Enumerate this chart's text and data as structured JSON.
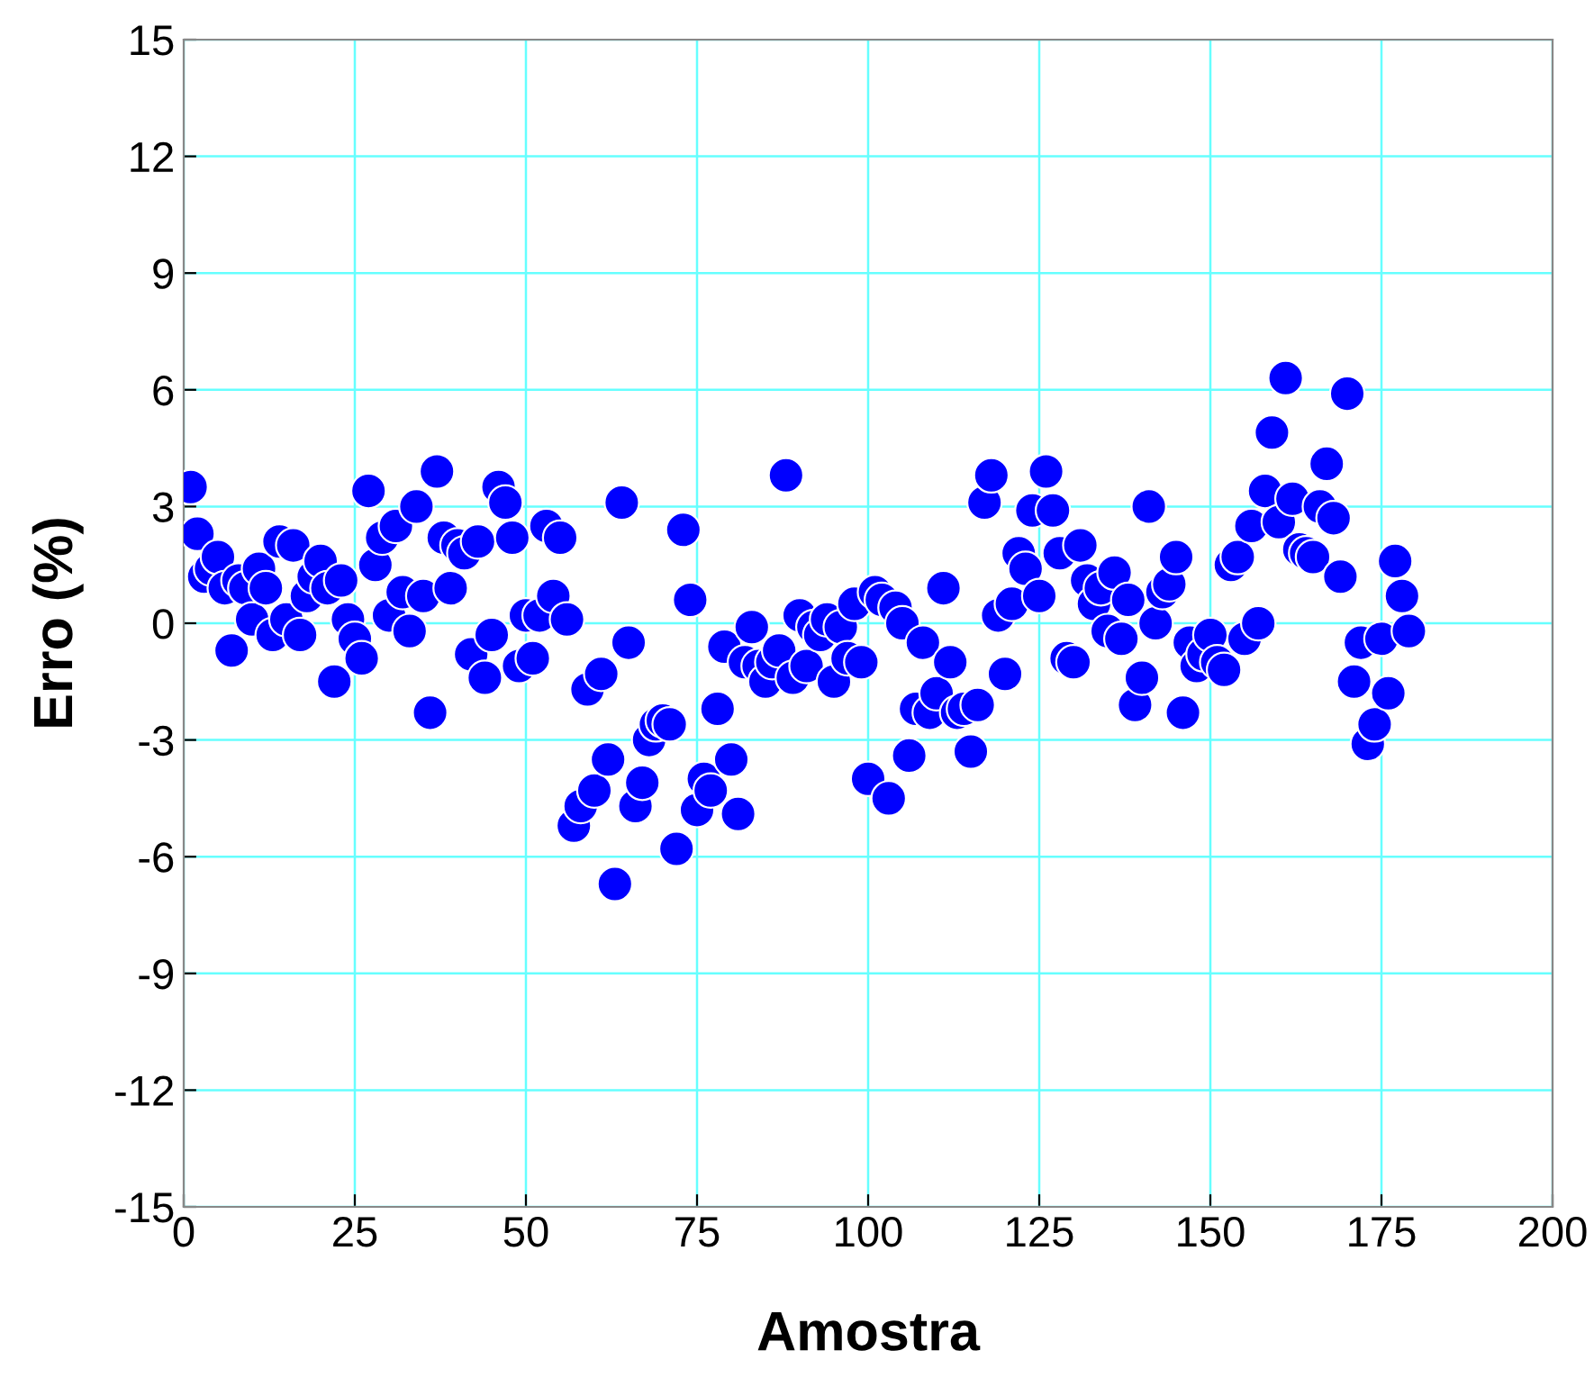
{
  "chart_data": {
    "type": "scatter",
    "xlabel": "Amostra",
    "ylabel": "Erro (%)",
    "x": [
      1,
      2,
      3,
      4,
      5,
      6,
      7,
      8,
      9,
      10,
      11,
      12,
      13,
      14,
      15,
      16,
      17,
      18,
      19,
      20,
      21,
      22,
      23,
      24,
      25,
      26,
      27,
      28,
      29,
      30,
      31,
      32,
      33,
      34,
      35,
      36,
      37,
      38,
      39,
      40,
      41,
      42,
      43,
      44,
      45,
      46,
      47,
      48,
      49,
      50,
      51,
      52,
      53,
      54,
      55,
      56,
      57,
      58,
      59,
      60,
      61,
      62,
      63,
      64,
      65,
      66,
      67,
      68,
      69,
      70,
      71,
      72,
      73,
      74,
      75,
      76,
      77,
      78,
      79,
      80,
      81,
      82,
      83,
      84,
      85,
      86,
      87,
      88,
      89,
      90,
      91,
      92,
      93,
      94,
      95,
      96,
      97,
      98,
      99,
      100,
      101,
      102,
      103,
      104,
      105,
      106,
      107,
      108,
      109,
      110,
      111,
      112,
      113,
      114,
      115,
      116,
      117,
      118,
      119,
      120,
      121,
      122,
      123,
      124,
      125,
      126,
      127,
      128,
      129,
      130,
      131,
      132,
      133,
      134,
      135,
      136,
      137,
      138,
      139,
      140,
      141,
      142,
      143,
      144,
      145,
      146,
      147,
      148,
      149,
      150,
      151,
      152,
      153,
      154,
      155,
      156,
      157,
      158,
      159,
      160,
      161,
      162,
      163,
      164,
      165,
      166,
      167,
      168,
      169,
      170,
      171,
      172,
      173,
      174,
      175,
      176,
      177,
      178,
      179
    ],
    "series": [
      {
        "color": "#0000ff",
        "values": [
          3.5,
          2.3,
          1.2,
          1.4,
          1.7,
          0.9,
          -0.7,
          1.1,
          0.9,
          0.1,
          1.4,
          0.9,
          -0.3,
          2.1,
          0.1,
          2.0,
          -0.3,
          0.7,
          1.2,
          1.6,
          0.9,
          -1.5,
          1.1,
          0.1,
          -0.4,
          -0.9,
          3.4,
          1.5,
          2.2,
          0.2,
          2.5,
          0.8,
          -0.2,
          3.0,
          0.7,
          -2.3,
          3.9,
          2.2,
          0.9,
          2.0,
          1.8,
          -0.8,
          2.1,
          -1.4,
          -0.3,
          3.5,
          3.1,
          2.2,
          -1.1,
          0.2,
          -0.9,
          0.2,
          2.5,
          0.7,
          2.2,
          0.1,
          -5.2,
          -4.7,
          -1.7,
          -4.3,
          -1.3,
          -3.5,
          -6.7,
          3.1,
          -0.5,
          -4.7,
          -4.1,
          -3.0,
          -2.6,
          -2.5,
          -2.6,
          -5.8,
          2.4,
          0.6,
          -4.8,
          -4.0,
          -4.3,
          -2.2,
          -0.6,
          -3.5,
          -4.9,
          -1.0,
          -0.1,
          -1.1,
          -1.5,
          -1.0,
          -0.7,
          3.8,
          -1.4,
          0.2,
          -1.1,
          -0.1,
          -0.3,
          0.1,
          -1.5,
          -0.1,
          -0.9,
          0.5,
          -1.0,
          -4.0,
          0.8,
          0.6,
          -4.5,
          0.4,
          0.0,
          -3.4,
          -2.2,
          -0.5,
          -2.3,
          -1.8,
          0.9,
          -1.0,
          -2.3,
          -2.2,
          -3.3,
          -2.1,
          3.1,
          3.8,
          0.2,
          -1.3,
          0.5,
          1.8,
          1.4,
          2.9,
          0.7,
          3.9,
          2.9,
          1.8,
          -0.9,
          -1.0,
          2.0,
          1.1,
          0.5,
          0.9,
          -0.2,
          1.3,
          -0.4,
          0.6,
          -2.1,
          -1.4,
          3.0,
          0.0,
          0.8,
          1.0,
          1.7,
          -2.3,
          -0.5,
          -1.1,
          -0.8,
          -0.3,
          -1.0,
          -1.2,
          1.5,
          1.7,
          -0.4,
          2.5,
          0.0,
          3.4,
          4.9,
          2.6,
          6.3,
          3.2,
          1.9,
          1.8,
          1.7,
          3.0,
          4.1,
          2.7,
          1.2,
          5.9,
          -1.5,
          -0.5,
          -3.1,
          -2.6,
          -0.4,
          -1.8,
          1.6,
          0.7,
          -0.2
        ]
      }
    ],
    "xlim": [
      0,
      200
    ],
    "xticks": [
      0,
      25,
      50,
      75,
      100,
      125,
      150,
      175,
      200
    ],
    "ylim": [
      -15,
      15
    ],
    "yticks": [
      -15,
      -12,
      -9,
      -6,
      -3,
      0,
      3,
      6,
      9,
      12,
      15
    ],
    "grid": true,
    "marker": "circle"
  }
}
